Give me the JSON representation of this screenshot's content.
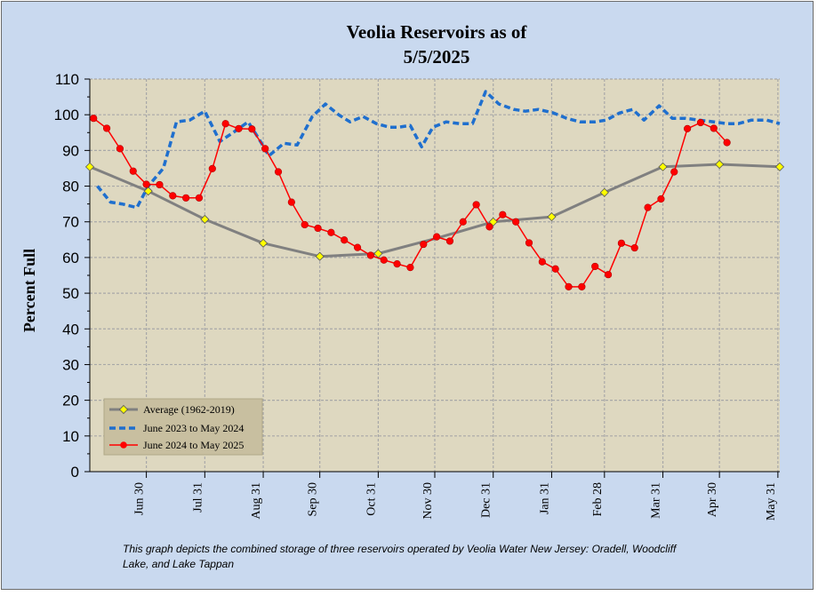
{
  "title_line1": "Veolia Reservoirs as of",
  "title_line2": "5/5/2025",
  "y_axis_label": "Percent Full",
  "footnote_line1": "This graph depicts the combined storage of three reservoirs operated by Veolia Water New Jersey: Oradell, Woodcliff",
  "footnote_line2": "Lake, and Lake Tappan",
  "colors": {
    "background": "#c9d9ef",
    "plot_area": "#ded8c0",
    "grid": "#a8a8a8",
    "average": "#808080",
    "avg_marker": "#ffff00",
    "series_2023": "#1f6fce",
    "series_2024": "#ff0000",
    "legend_bg": "#c8bfa0"
  },
  "chart_data": {
    "type": "line",
    "title": "Veolia Reservoirs as of 5/5/2025",
    "ylabel": "Percent Full",
    "ylim": [
      0,
      110
    ],
    "y_ticks": [
      "0",
      "10",
      "20",
      "30",
      "40",
      "50",
      "60",
      "70",
      "80",
      "90",
      "100",
      "110"
    ],
    "x_range_days": [
      0,
      366
    ],
    "x_tick_labels": [
      {
        "label": "Jun 30",
        "day": 30
      },
      {
        "label": "Jul 31",
        "day": 61
      },
      {
        "label": "Aug 31",
        "day": 92
      },
      {
        "label": "Sep 30",
        "day": 122
      },
      {
        "label": "Oct 31",
        "day": 153
      },
      {
        "label": "Nov 30",
        "day": 183
      },
      {
        "label": "Dec 31",
        "day": 214
      },
      {
        "label": "Jan 31",
        "day": 245
      },
      {
        "label": "Feb 28",
        "day": 273
      },
      {
        "label": "Mar 31",
        "day": 304
      },
      {
        "label": "Apr 30",
        "day": 334
      },
      {
        "label": "May 31",
        "day": 365
      }
    ],
    "grid": true,
    "legend_position": "bottom-left",
    "series": [
      {
        "name": "Average (1962-2019)",
        "style": "solid-gray-diamond",
        "points": [
          [
            0,
            85.4
          ],
          [
            31,
            78.6
          ],
          [
            61,
            70.7
          ],
          [
            92,
            64.0
          ],
          [
            122,
            60.3
          ],
          [
            153,
            61.1
          ],
          [
            184,
            65.4
          ],
          [
            214,
            70.0
          ],
          [
            245,
            71.4
          ],
          [
            273,
            78.2
          ],
          [
            304,
            85.4
          ],
          [
            334,
            86.1
          ],
          [
            366,
            85.4
          ]
        ],
        "marker_days": [
          0,
          31,
          61,
          92,
          122,
          153,
          214,
          245,
          273,
          304,
          334,
          366
        ]
      },
      {
        "name": "June 2023 to May 2024",
        "style": "dashed-blue",
        "points": [
          [
            4,
            80.0
          ],
          [
            11,
            75.5
          ],
          [
            17,
            75.0
          ],
          [
            25,
            74.0
          ],
          [
            31,
            80.0
          ],
          [
            39,
            85.0
          ],
          [
            46,
            98.0
          ],
          [
            53,
            98.5
          ],
          [
            61,
            101.0
          ],
          [
            69,
            92.5
          ],
          [
            76,
            95.0
          ],
          [
            84,
            98.0
          ],
          [
            90,
            93.0
          ],
          [
            95,
            88.5
          ],
          [
            103,
            92.0
          ],
          [
            110,
            91.5
          ],
          [
            118,
            99.5
          ],
          [
            125,
            103.0
          ],
          [
            132,
            100.0
          ],
          [
            138,
            98.0
          ],
          [
            145,
            99.5
          ],
          [
            152,
            97.5
          ],
          [
            159,
            96.5
          ],
          [
            164,
            96.5
          ],
          [
            170,
            97.0
          ],
          [
            176,
            91.0
          ],
          [
            182,
            96.5
          ],
          [
            189,
            98.0
          ],
          [
            196,
            97.5
          ],
          [
            203,
            97.5
          ],
          [
            210,
            106.5
          ],
          [
            217,
            103.0
          ],
          [
            225,
            101.5
          ],
          [
            231,
            101.0
          ],
          [
            238,
            101.5
          ],
          [
            246,
            100.5
          ],
          [
            253,
            99.0
          ],
          [
            260,
            98.0
          ],
          [
            268,
            98.0
          ],
          [
            274,
            98.5
          ],
          [
            281,
            100.5
          ],
          [
            288,
            101.5
          ],
          [
            294,
            98.5
          ],
          [
            302,
            102.5
          ],
          [
            309,
            99.0
          ],
          [
            316,
            99.0
          ],
          [
            323,
            98.5
          ],
          [
            331,
            98.0
          ],
          [
            338,
            97.5
          ],
          [
            344,
            97.5
          ],
          [
            351,
            98.5
          ],
          [
            359,
            98.5
          ],
          [
            366,
            97.5
          ]
        ]
      },
      {
        "name": "June 2024 to May 2025",
        "style": "solid-red-dot",
        "points": [
          [
            2,
            99.0
          ],
          [
            9,
            96.2
          ],
          [
            16,
            90.5
          ],
          [
            23,
            84.2
          ],
          [
            30,
            80.5
          ],
          [
            37,
            80.4
          ],
          [
            44,
            77.3
          ],
          [
            51,
            76.7
          ],
          [
            58,
            76.7
          ],
          [
            65,
            84.9
          ],
          [
            72,
            97.5
          ],
          [
            79,
            96.1
          ],
          [
            86,
            96.0
          ],
          [
            93,
            90.5
          ],
          [
            100,
            84.0
          ],
          [
            107,
            75.5
          ],
          [
            114,
            69.2
          ],
          [
            121,
            68.2
          ],
          [
            128,
            67.0
          ],
          [
            135,
            64.9
          ],
          [
            142,
            62.8
          ],
          [
            149,
            60.6
          ],
          [
            156,
            59.3
          ],
          [
            163,
            58.2
          ],
          [
            170,
            57.2
          ],
          [
            177,
            63.7
          ],
          [
            184,
            65.8
          ],
          [
            191,
            64.6
          ],
          [
            198,
            70.0
          ],
          [
            205,
            74.8
          ],
          [
            212,
            68.6
          ],
          [
            219,
            72.0
          ],
          [
            226,
            70.0
          ],
          [
            233,
            64.1
          ],
          [
            240,
            58.8
          ],
          [
            247,
            56.8
          ],
          [
            254,
            51.8
          ],
          [
            261,
            51.8
          ],
          [
            268,
            57.5
          ],
          [
            275,
            55.2
          ],
          [
            282,
            64.0
          ],
          [
            289,
            62.7
          ],
          [
            296,
            74.0
          ],
          [
            303,
            76.4
          ],
          [
            310,
            84.0
          ],
          [
            317,
            96.1
          ],
          [
            324,
            97.8
          ],
          [
            331,
            96.2
          ],
          [
            338,
            92.2
          ]
        ]
      }
    ]
  }
}
